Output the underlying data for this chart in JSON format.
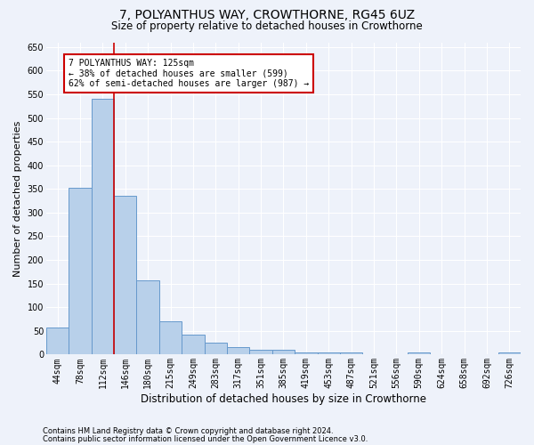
{
  "title": "7, POLYANTHUS WAY, CROWTHORNE, RG45 6UZ",
  "subtitle": "Size of property relative to detached houses in Crowthorne",
  "xlabel": "Distribution of detached houses by size in Crowthorne",
  "ylabel": "Number of detached properties",
  "all_labels": [
    "44sqm",
    "78sqm",
    "112sqm",
    "146sqm",
    "180sqm",
    "215sqm",
    "249sqm",
    "283sqm",
    "317sqm",
    "351sqm",
    "385sqm",
    "419sqm",
    "453sqm",
    "487sqm",
    "521sqm",
    "556sqm",
    "590sqm",
    "624sqm",
    "658sqm",
    "692sqm",
    "726sqm"
  ],
  "bar_heights": [
    57,
    353,
    541,
    336,
    157,
    70,
    42,
    25,
    15,
    10,
    10,
    5,
    5,
    5,
    0,
    0,
    5,
    0,
    0,
    0,
    5
  ],
  "bar_color": "#b8d0ea",
  "bar_edge_color": "#6699cc",
  "vline_x": 2.5,
  "vline_color": "#cc0000",
  "ylim": [
    0,
    660
  ],
  "yticks": [
    0,
    50,
    100,
    150,
    200,
    250,
    300,
    350,
    400,
    450,
    500,
    550,
    600,
    650
  ],
  "annotation_text": "7 POLYANTHUS WAY: 125sqm\n← 38% of detached houses are smaller (599)\n62% of semi-detached houses are larger (987) →",
  "annotation_box_color": "#ffffff",
  "annotation_box_edge": "#cc0000",
  "footnote1": "Contains HM Land Registry data © Crown copyright and database right 2024.",
  "footnote2": "Contains public sector information licensed under the Open Government Licence v3.0.",
  "background_color": "#eef2fa",
  "grid_color": "#ffffff",
  "title_fontsize": 10,
  "subtitle_fontsize": 8.5,
  "ylabel_fontsize": 8,
  "xlabel_fontsize": 8.5,
  "tick_fontsize": 7,
  "annot_fontsize": 7,
  "footnote_fontsize": 6
}
